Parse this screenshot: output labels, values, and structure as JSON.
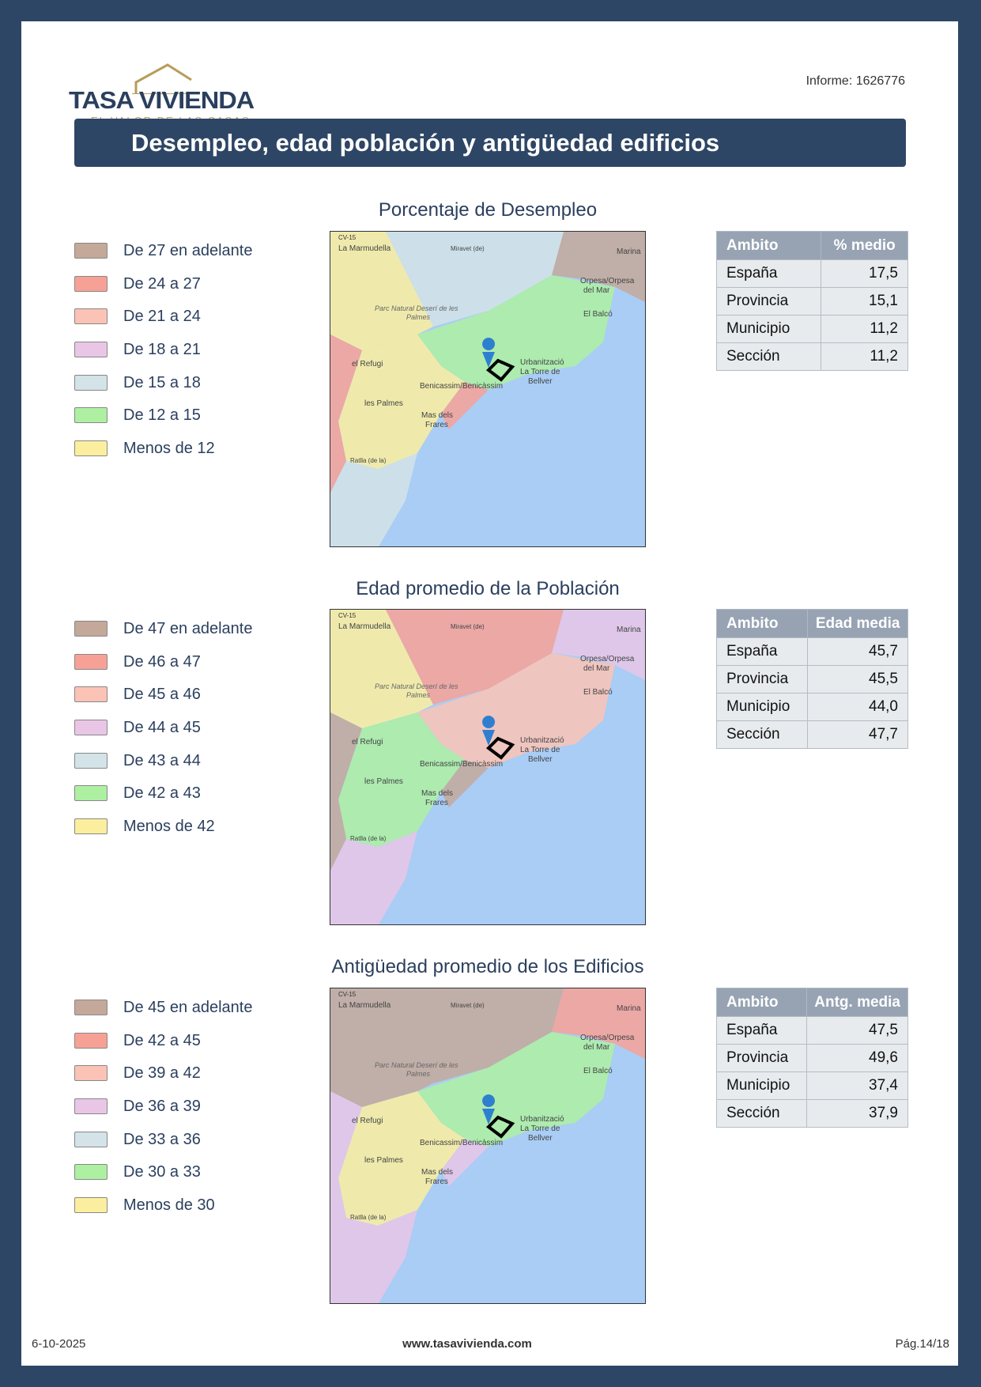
{
  "header": {
    "brand": "TASA VIVIENDA",
    "tagline": "EL VALOR DE LAS CASAS",
    "informe": "Informe: 1626776",
    "title": "Desempleo, edad población y antigüedad edificios"
  },
  "colors": {
    "frame": "#2e4665",
    "legend": [
      "#c4a89a",
      "#f7a196",
      "#fbc3b5",
      "#e9c6e6",
      "#d3e3e7",
      "#aef0a2",
      "#fbef9f"
    ]
  },
  "sections": [
    {
      "title": "Porcentaje de Desempleo",
      "legend": [
        "De 27 en adelante",
        "De 24 a 27",
        "De 21 a 24",
        "De 18 a 21",
        "De 15 a 18",
        "De 12 a 15",
        "Menos de 12"
      ],
      "table": {
        "headers": [
          "Ambito",
          "% medio"
        ],
        "rows": [
          [
            "España",
            "17,5"
          ],
          [
            "Provincia",
            "15,1"
          ],
          [
            "Municipio",
            "11,2"
          ],
          [
            "Sección",
            "11,2"
          ]
        ]
      }
    },
    {
      "title": "Edad promedio de la Población",
      "legend": [
        "De 47 en adelante",
        "De 46 a 47",
        "De 45 a 46",
        "De 44 a 45",
        "De 43 a 44",
        "De 42 a 43",
        "Menos de 42"
      ],
      "table": {
        "headers": [
          "Ambito",
          "Edad media"
        ],
        "rows": [
          [
            "España",
            "45,7"
          ],
          [
            "Provincia",
            "45,5"
          ],
          [
            "Municipio",
            "44,0"
          ],
          [
            "Sección",
            "47,7"
          ]
        ]
      }
    },
    {
      "title": "Antigüedad promedio de los Edificios",
      "legend": [
        "De 45 en adelante",
        "De 42 a 45",
        "De 39 a 42",
        "De 36 a 39",
        "De 33 a 36",
        "De 30 a 33",
        "Menos de 30"
      ],
      "table": {
        "headers": [
          "Ambito",
          "Antg. media"
        ],
        "rows": [
          [
            "España",
            "47,5"
          ],
          [
            "Provincia",
            "49,6"
          ],
          [
            "Municipio",
            "37,4"
          ],
          [
            "Sección",
            "37,9"
          ]
        ]
      }
    }
  ],
  "map_labels": [
    "CV-15",
    "La Marmudella",
    "Miravet (de)",
    "Marina",
    "Orpesa/Orpesa del Mar",
    "Parc Natural Deserí de les Palmes",
    "El Balcó",
    "el Refugi",
    "Urbanització La Torre de Bellver",
    "Benicassim/Benicàssim",
    "les Palmes",
    "Mas dels Frares",
    "Ratlla (de la)"
  ],
  "footer": {
    "date": "6-10-2025",
    "url": "www.tasavivienda.com",
    "page": "Pág.14/18"
  }
}
